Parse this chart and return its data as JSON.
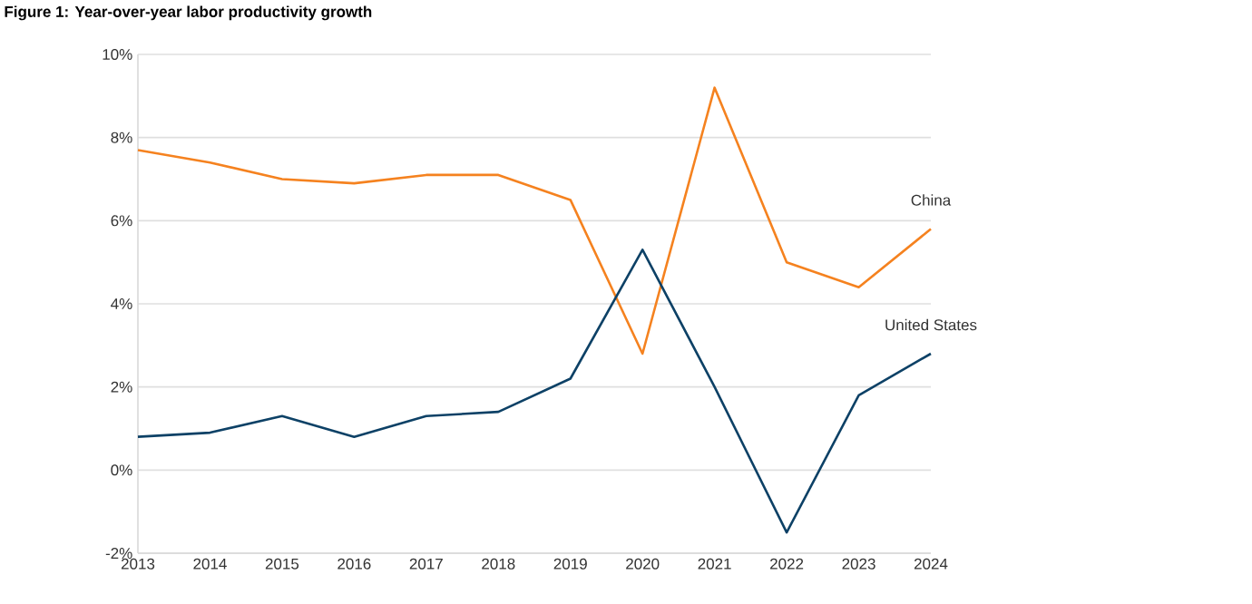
{
  "chart_data": {
    "type": "line",
    "title": "Figure 1: Year-over-year labor productivity growth",
    "categories": [
      "2013",
      "2014",
      "2015",
      "2016",
      "2017",
      "2018",
      "2019",
      "2020",
      "2021",
      "2022",
      "2023",
      "2024"
    ],
    "series": [
      {
        "name": "China",
        "color": "#f5821f",
        "values": [
          7.7,
          7.4,
          7.0,
          6.9,
          7.1,
          7.1,
          6.5,
          2.8,
          9.2,
          5.0,
          4.4,
          5.8
        ]
      },
      {
        "name": "United States",
        "color": "#0d4166",
        "values": [
          0.8,
          0.9,
          1.3,
          0.8,
          1.3,
          1.4,
          2.2,
          5.3,
          2.0,
          -1.5,
          1.8,
          2.8
        ]
      }
    ],
    "ylim": [
      -2,
      10
    ],
    "yticks": [
      {
        "value": -2,
        "label": "-2%"
      },
      {
        "value": 0,
        "label": "0%"
      },
      {
        "value": 2,
        "label": "2%"
      },
      {
        "value": 4,
        "label": "4%"
      },
      {
        "value": 6,
        "label": "6%"
      },
      {
        "value": 8,
        "label": "8%"
      },
      {
        "value": 10,
        "label": "10%"
      }
    ],
    "grid": "y",
    "legend": false,
    "marker": "none",
    "line_style": "solid"
  }
}
